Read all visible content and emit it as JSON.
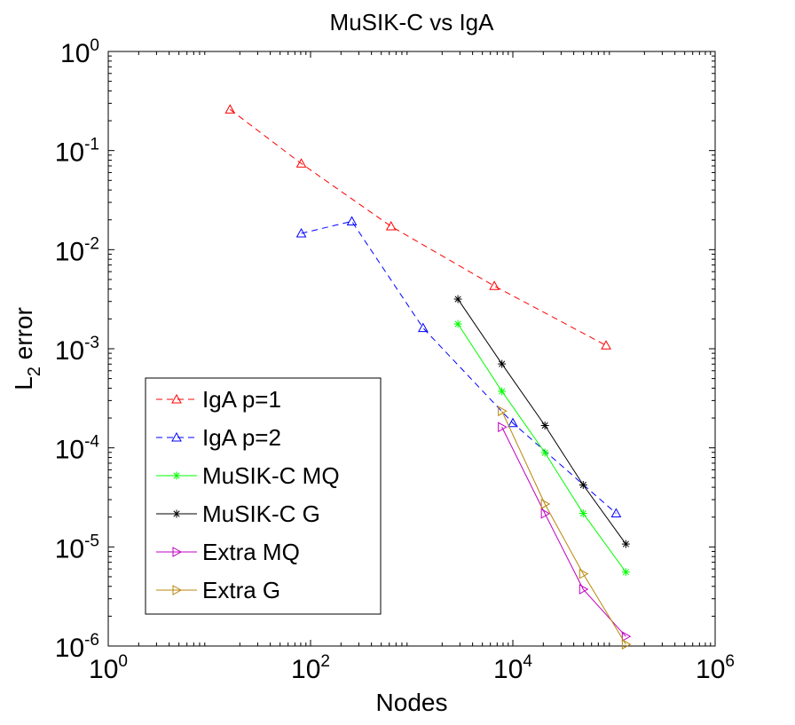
{
  "chart_data": {
    "type": "line",
    "title": "MuSIK-C vs IgA",
    "xlabel": "Nodes",
    "ylabel_main": "L",
    "ylabel_sub": "2",
    "ylabel_rest": "error",
    "xscale": "log",
    "yscale": "log",
    "xlim": [
      1,
      1000000
    ],
    "ylim": [
      1e-06,
      1
    ],
    "grid": false,
    "legend_position": "bottom-left",
    "x_ticks": [
      {
        "base": "10",
        "exp": "0"
      },
      {
        "base": "10",
        "exp": "2"
      },
      {
        "base": "10",
        "exp": "4"
      },
      {
        "base": "10",
        "exp": "6"
      }
    ],
    "y_ticks": [
      {
        "base": "10",
        "exp": "0"
      },
      {
        "base": "10",
        "exp": "-1"
      },
      {
        "base": "10",
        "exp": "-2"
      },
      {
        "base": "10",
        "exp": "-3"
      },
      {
        "base": "10",
        "exp": "-4"
      },
      {
        "base": "10",
        "exp": "-5"
      },
      {
        "base": "10",
        "exp": "-6"
      }
    ],
    "series": [
      {
        "name": "IgA p=1",
        "color": "#ff0000",
        "dash": true,
        "marker": "triangle-up",
        "x": [
          16,
          81,
          625,
          6561,
          83521
        ],
        "y": [
          0.26,
          0.074,
          0.0172,
          0.0043,
          0.00108
        ]
      },
      {
        "name": "IgA p=2",
        "color": "#0000ff",
        "dash": true,
        "marker": "triangle-up",
        "x": [
          81,
          256,
          1296,
          10000,
          104976
        ],
        "y": [
          0.0146,
          0.0193,
          0.00162,
          0.000178,
          2.18e-05
        ]
      },
      {
        "name": "MuSIK-C MQ",
        "color": "#00ff00",
        "dash": false,
        "marker": "star",
        "x": [
          2865,
          7796,
          20756,
          49617,
          131000
        ],
        "y": [
          0.00178,
          0.000372,
          8.94e-05,
          2.18e-05,
          5.57e-06
        ]
      },
      {
        "name": "MuSIK-C G",
        "color": "#000000",
        "dash": false,
        "marker": "star",
        "x": [
          2865,
          7796,
          20756,
          49617,
          131000
        ],
        "y": [
          0.00317,
          0.000703,
          0.000168,
          4.22e-05,
          1.07e-05
        ]
      },
      {
        "name": "Extra MQ",
        "color": "#c000c0",
        "dash": false,
        "marker": "triangle-right",
        "x": [
          7796,
          20756,
          49617,
          131000
        ],
        "y": [
          0.000162,
          2.17e-05,
          3.74e-06,
          1.25e-06
        ]
      },
      {
        "name": "Extra G",
        "color": "#b8860b",
        "dash": false,
        "marker": "triangle-right",
        "x": [
          7796,
          20756,
          49617,
          131000
        ],
        "y": [
          0.000235,
          2.71e-05,
          5.35e-06,
          1.04e-06
        ]
      }
    ]
  }
}
